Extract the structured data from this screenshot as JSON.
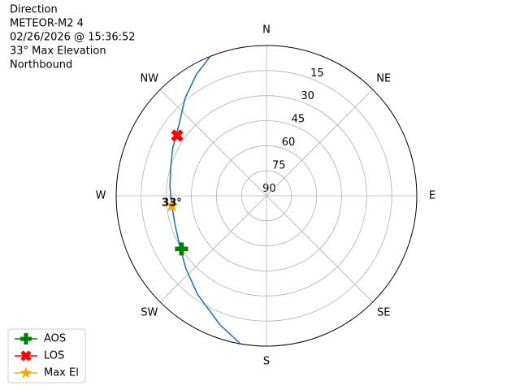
{
  "chart_data": {
    "type": "polar",
    "title_lines": [
      "Direction",
      "METEOR-M2 4",
      "02/26/2026 @ 15:36:52",
      "33° Max Elevation",
      "Northbound"
    ],
    "theta_zero": "N",
    "theta_direction": -1,
    "rlim": [
      90,
      0
    ],
    "rticks": [
      15,
      30,
      45,
      60,
      75,
      90
    ],
    "thetaticks": [
      {
        "value": 0,
        "label": "N"
      },
      {
        "value": 45,
        "label": "NE"
      },
      {
        "value": 90,
        "label": "E"
      },
      {
        "value": 135,
        "label": "SE"
      },
      {
        "value": 180,
        "label": "S"
      },
      {
        "value": 225,
        "label": "SW"
      },
      {
        "value": 270,
        "label": "W"
      },
      {
        "value": 315,
        "label": "NW"
      }
    ],
    "grid": true,
    "track": {
      "color": "#1f77b4",
      "az": [
        190,
        200,
        215,
        228,
        240,
        252,
        264,
        275,
        287,
        297,
        310,
        320,
        330,
        338
      ],
      "el": [
        0,
        8,
        18,
        25,
        30,
        32.5,
        33,
        32,
        30,
        27,
        22,
        14,
        6,
        0
      ]
    },
    "series": [
      {
        "name": "AOS",
        "color": "green",
        "marker": "plus",
        "az": 238,
        "el": 30
      },
      {
        "name": "LOS",
        "color": "red",
        "marker": "x",
        "az": 304,
        "el": 25.5
      },
      {
        "name": "Max El",
        "color": "orange",
        "marker": "star",
        "az": 264,
        "el": 33
      }
    ],
    "annotation": {
      "text": "33°"
    },
    "legend": "lower left"
  }
}
